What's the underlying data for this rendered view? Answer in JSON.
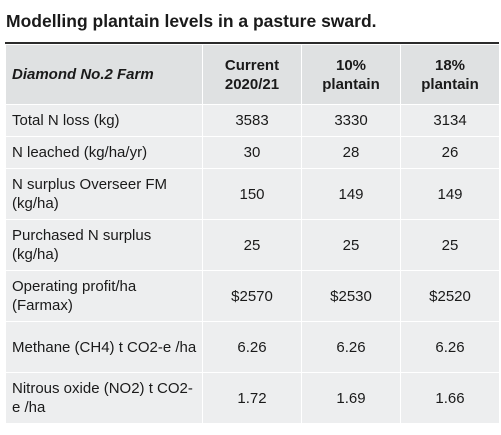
{
  "title": "Modelling plantain levels in a pasture sward.",
  "header": {
    "farm": "Diamond No.2 Farm",
    "cols": [
      {
        "line1": "Current",
        "line2": "2020/21"
      },
      {
        "line1": "10%",
        "line2": "plantain"
      },
      {
        "line1": "18%",
        "line2": "plantain"
      }
    ]
  },
  "rows": [
    {
      "label": "Total N loss (kg)",
      "values": [
        "3583",
        "3330",
        "3134"
      ]
    },
    {
      "label": "N leached (kg/ha/yr)",
      "values": [
        "30",
        "28",
        "26"
      ]
    },
    {
      "label": "N surplus Overseer FM (kg/ha)",
      "values": [
        "150",
        "149",
        "149"
      ]
    },
    {
      "label": "Purchased N surplus (kg/ha)",
      "values": [
        "25",
        "25",
        "25"
      ]
    },
    {
      "label": "Operating profit/ha (Farmax)",
      "values": [
        "$2570",
        "$2530",
        "$2520"
      ]
    },
    {
      "label": "Methane (CH4) t CO2-e /ha",
      "values": [
        "6.26",
        "6.26",
        "6.26"
      ]
    },
    {
      "label": "Nitrous oxide  (NO2) t CO2-e /ha",
      "values": [
        "1.72",
        "1.69",
        "1.66"
      ]
    }
  ]
}
